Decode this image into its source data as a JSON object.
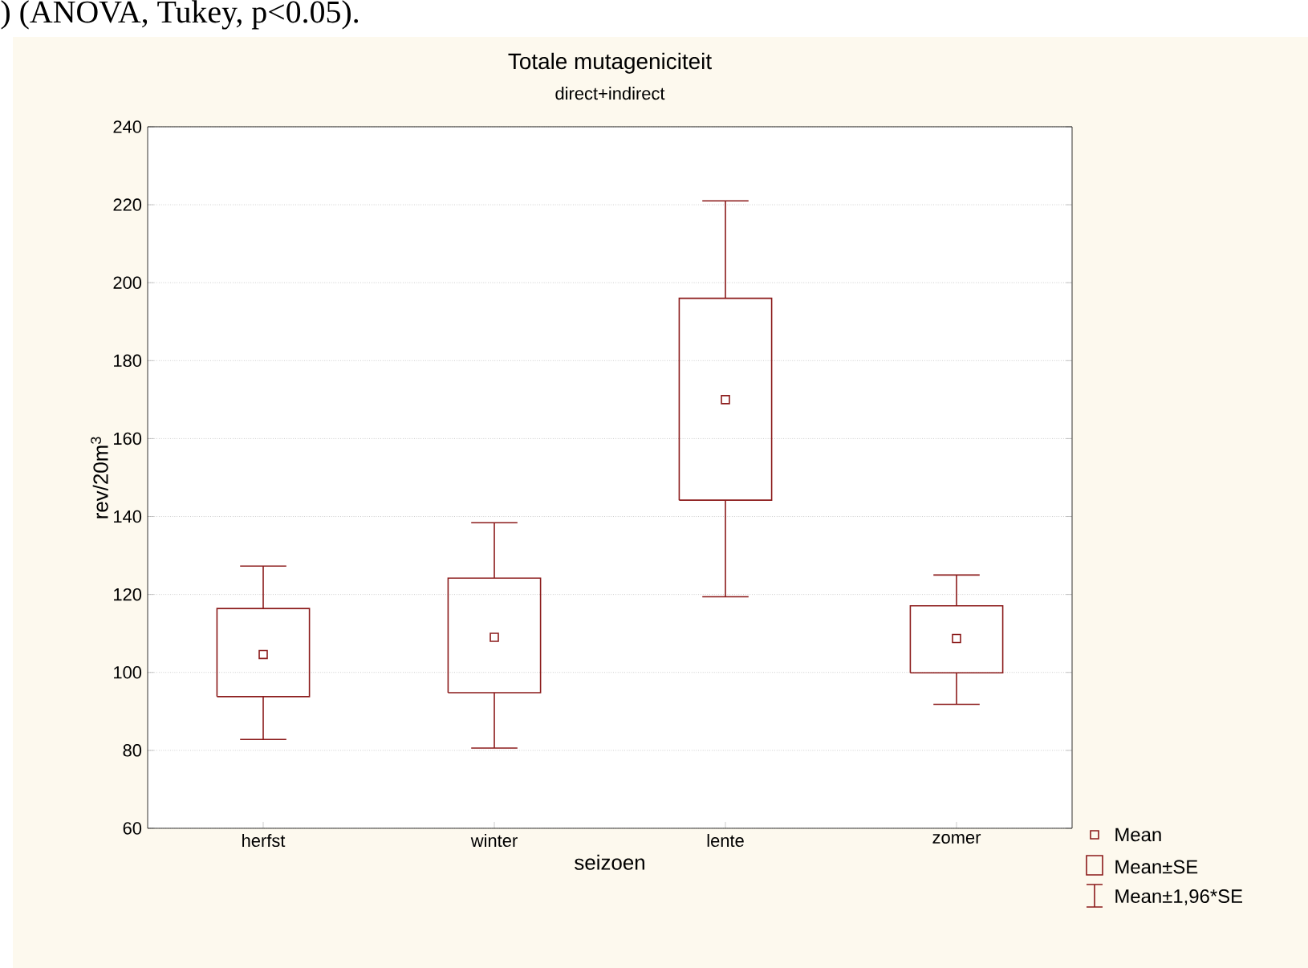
{
  "chart_data": {
    "type": "box",
    "title": "Totale mutageniciteit",
    "subtitle": "direct+indirect",
    "xlabel": "seizoen",
    "ylabel": "rev/20m$^{3}$",
    "categories": [
      "herfst",
      "winter",
      "lente",
      "zomer"
    ],
    "color": "#8b1a1a",
    "boxes": [
      {
        "low": 82.8,
        "q1": 93.8,
        "q3": 116.4,
        "high": 127.3,
        "mean": 104.6
      },
      {
        "low": 80.6,
        "q1": 94.8,
        "q3": 124.2,
        "high": 138.4,
        "mean": 109.0
      },
      {
        "low": 119.4,
        "q1": 144.2,
        "q3": 196.0,
        "high": 221.0,
        "mean": 170.0
      },
      {
        "low": 91.8,
        "q1": 99.9,
        "q3": 117.1,
        "high": 125.0,
        "mean": 108.7
      }
    ],
    "ylim": [
      60,
      240
    ],
    "yticks": [
      60,
      80,
      100,
      120,
      140,
      160,
      180,
      200,
      220,
      240
    ],
    "grid": "y",
    "annotations": [
      "Mean",
      "Mean±SE",
      "Mean±1,96*SE",
      ") (ANOVA, Tukey, p<0.05)."
    ]
  }
}
